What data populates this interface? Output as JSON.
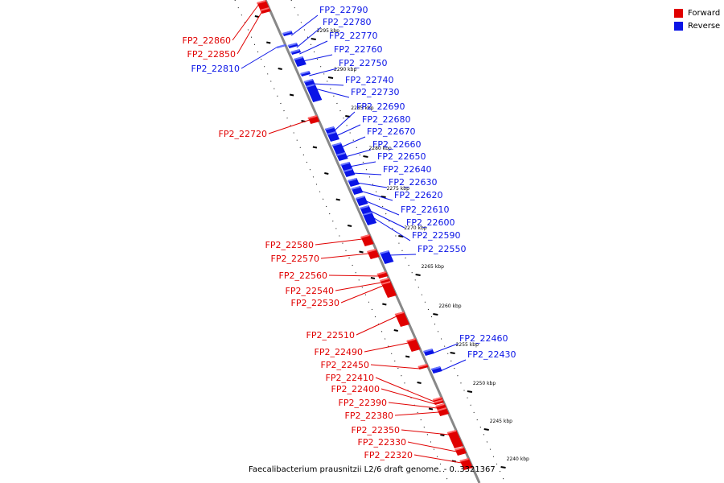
{
  "legend": {
    "forward_label": "Forward",
    "reverse_label": "Reverse"
  },
  "colors": {
    "forward": "#e00000",
    "forward_light": "#ff6a6a",
    "reverse": "#0a14e6",
    "reverse_light": "#6a78ff",
    "axis": "#888888"
  },
  "caption": "Faecalibacterium prausnitzii L2/6 draft genome. - 0..3321367",
  "ticks": [
    {
      "label": "2295 kbp"
    },
    {
      "label": "2290 kbp"
    },
    {
      "label": "2285 kbp"
    },
    {
      "label": "2280 kbp"
    },
    {
      "label": "2275 kbp"
    },
    {
      "label": "2270 kbp"
    },
    {
      "label": "2265 kbp"
    },
    {
      "label": "2260 kbp"
    },
    {
      "label": "2255 kbp"
    },
    {
      "label": "2250 kbp"
    },
    {
      "label": "2245 kbp"
    },
    {
      "label": "2240 kbp"
    }
  ],
  "forward_genes": [
    "FP2_22860",
    "FP2_22850",
    "FP2_22720",
    "FP2_22580",
    "FP2_22570",
    "FP2_22560",
    "FP2_22540",
    "FP2_22530",
    "FP2_22510",
    "FP2_22490",
    "FP2_22450",
    "FP2_22410",
    "FP2_22400",
    "FP2_22390",
    "FP2_22380",
    "FP2_22350",
    "FP2_22330",
    "FP2_22320"
  ],
  "reverse_genes": [
    "FP2_22790",
    "FP2_22780",
    "FP2_22770",
    "FP2_22810",
    "FP2_22760",
    "FP2_22750",
    "FP2_22740",
    "FP2_22730",
    "FP2_22690",
    "FP2_22680",
    "FP2_22670",
    "FP2_22660",
    "FP2_22650",
    "FP2_22640",
    "FP2_22630",
    "FP2_22620",
    "FP2_22610",
    "FP2_22600",
    "FP2_22590",
    "FP2_22550",
    "FP2_22460",
    "FP2_22430"
  ]
}
